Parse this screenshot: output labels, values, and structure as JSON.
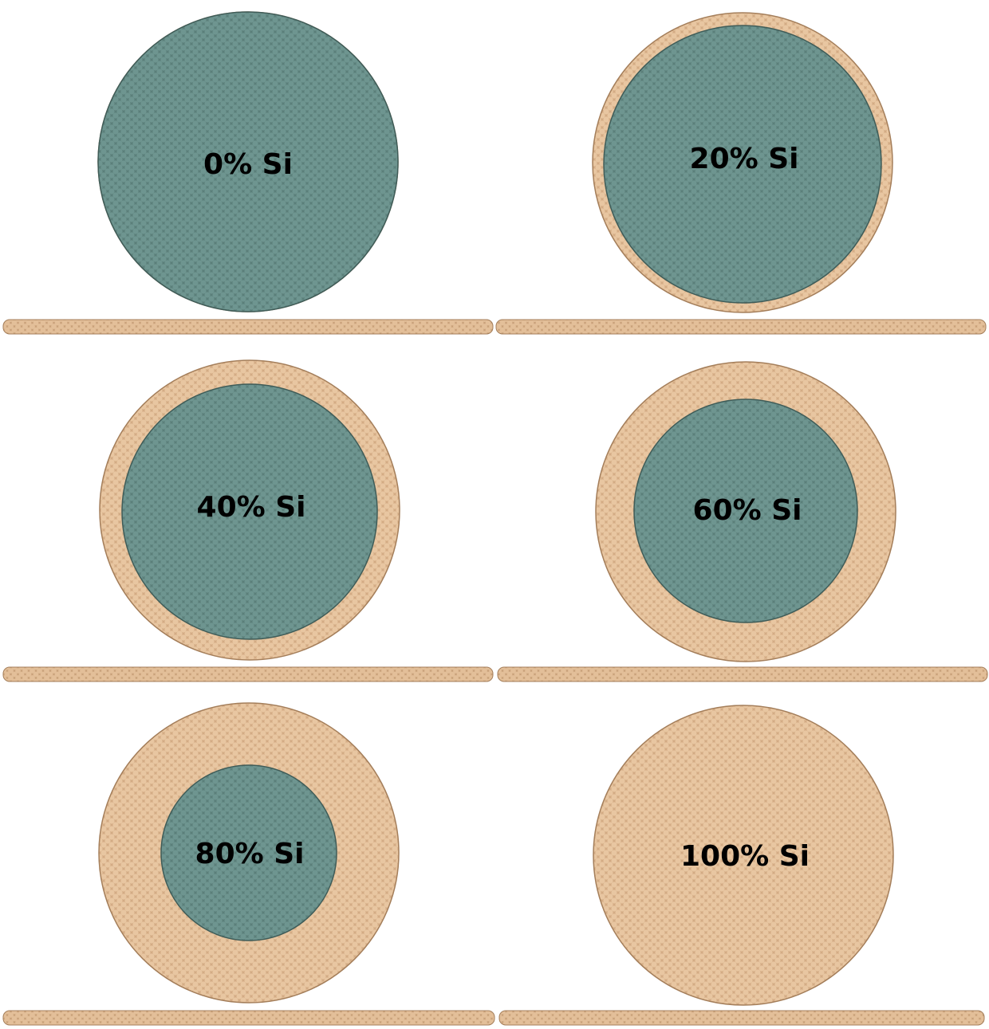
{
  "colors": {
    "core": "#5b7f7a",
    "core_atom": "#6e9590",
    "core_edge": "#3f5c58",
    "shell": "#deb892",
    "shell_atom": "#e8c6a1",
    "shell_edge": "#a47e5a",
    "substrate": "#d7b18c",
    "background": "#ffffff"
  },
  "panels": [
    {
      "label": "0% Si",
      "si_fraction": 0.0
    },
    {
      "label": "20% Si",
      "si_fraction": 0.2
    },
    {
      "label": "40% Si",
      "si_fraction": 0.4
    },
    {
      "label": "60% Si",
      "si_fraction": 0.6
    },
    {
      "label": "80% Si",
      "si_fraction": 0.8
    },
    {
      "label": "100% Si",
      "si_fraction": 1.0
    }
  ]
}
